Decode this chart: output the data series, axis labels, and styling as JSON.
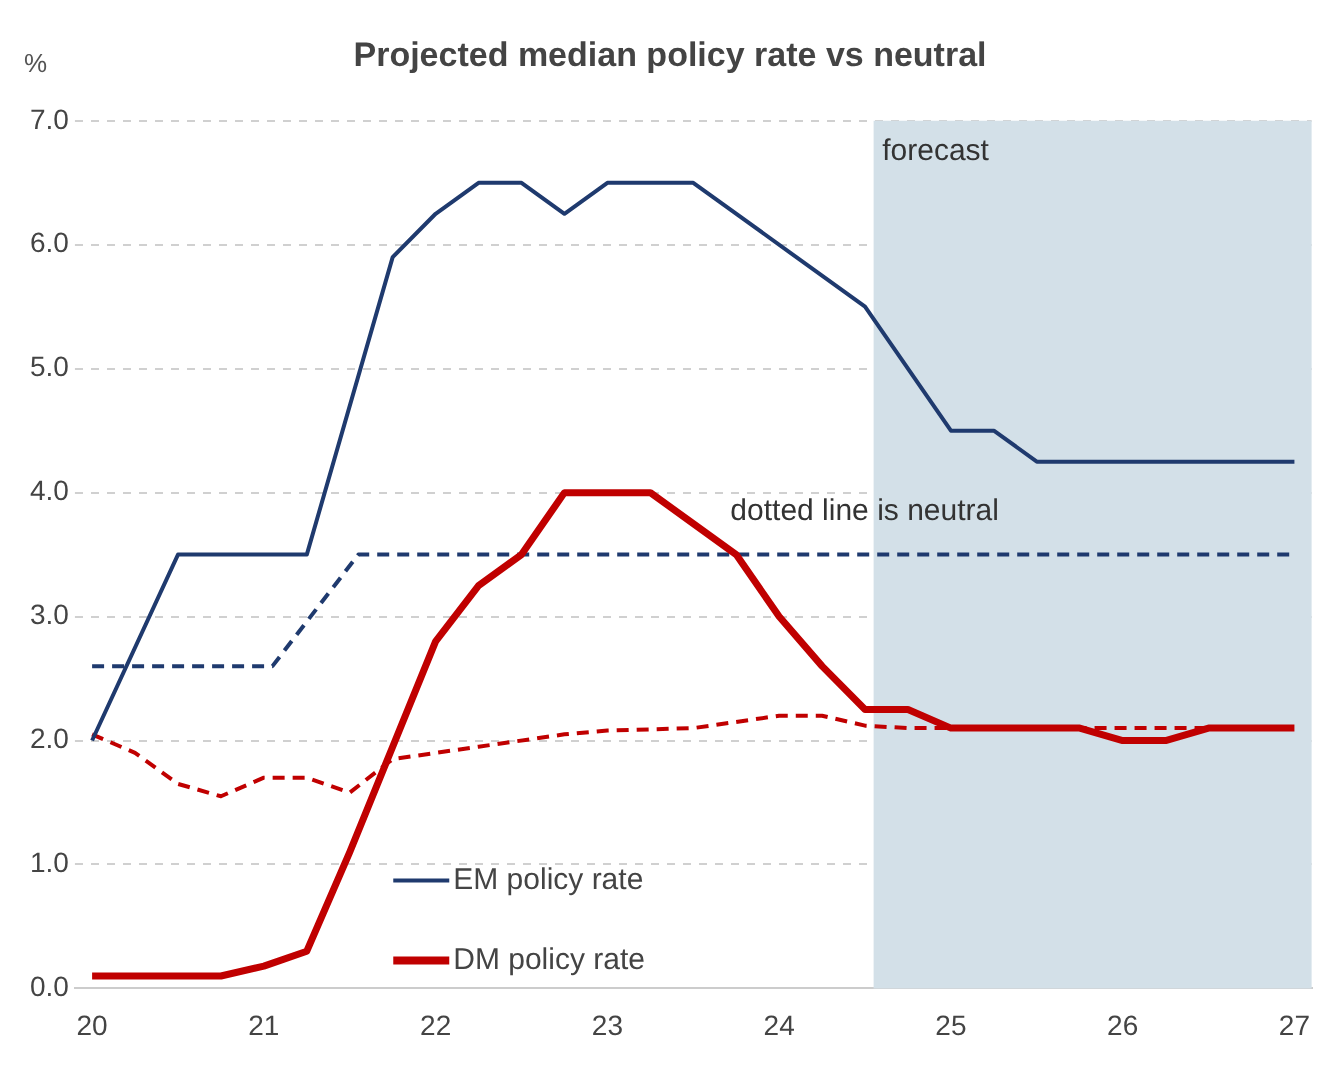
{
  "chart_data": {
    "type": "line",
    "title": "Projected median policy rate vs neutral",
    "ylabel": "%",
    "xlim": [
      19.9,
      27.1
    ],
    "xticks": [
      20,
      21,
      22,
      23,
      24,
      25,
      26,
      27
    ],
    "ylim": [
      0,
      7
    ],
    "yticks": [
      {
        "value": 0,
        "label": "0.0"
      },
      {
        "value": 1,
        "label": "1.0"
      },
      {
        "value": 2,
        "label": "2.0"
      },
      {
        "value": 3,
        "label": "3.0"
      },
      {
        "value": 4,
        "label": "4.0"
      },
      {
        "value": 5,
        "label": "5.0"
      },
      {
        "value": 6,
        "label": "6.0"
      },
      {
        "value": 7,
        "label": "7.0"
      }
    ],
    "grid": "y",
    "legend": "bottom",
    "marker": "none",
    "series": [
      {
        "name": "EM policy rate",
        "color": "#1f3a6e",
        "line_style": "solid",
        "x": [
          20,
          20.5,
          21.25,
          21.75,
          22,
          22.25,
          22.5,
          22.75,
          23,
          23.5,
          24.5,
          25,
          25.25,
          25.5,
          27
        ],
        "values": [
          2.0,
          3.5,
          3.5,
          5.9,
          6.25,
          6.5,
          6.5,
          6.25,
          6.5,
          6.5,
          5.5,
          4.5,
          4.5,
          4.25,
          4.25
        ]
      },
      {
        "name": "DM policy rate",
        "color": "#c00000",
        "line_style": "solid",
        "x": [
          20,
          20.75,
          21,
          21.25,
          21.5,
          21.75,
          22,
          22.25,
          22.5,
          22.75,
          23,
          23.25,
          23.5,
          23.75,
          24,
          24.25,
          24.5,
          24.75,
          25,
          25.75,
          26,
          26.25,
          26.5,
          27
        ],
        "values": [
          0.1,
          0.1,
          0.18,
          0.3,
          1.1,
          1.95,
          2.8,
          3.25,
          3.5,
          4.0,
          4.0,
          4.0,
          3.75,
          3.5,
          3.0,
          2.6,
          2.25,
          2.25,
          2.1,
          2.1,
          2.0,
          2.0,
          2.1,
          2.1
        ]
      },
      {
        "color": "#1f3a6e",
        "line_style": "dashed",
        "x": [
          20,
          21.05,
          21.55,
          27
        ],
        "values": [
          2.6,
          2.6,
          3.5,
          3.5
        ]
      },
      {
        "color": "#c00000",
        "line_style": "dashed",
        "x": [
          20,
          20.25,
          20.5,
          20.75,
          21,
          21.25,
          21.5,
          21.75,
          22,
          22.25,
          22.75,
          23,
          23.5,
          23.75,
          24,
          24.25,
          24.5,
          24.75,
          27
        ],
        "values": [
          2.05,
          1.9,
          1.65,
          1.55,
          1.7,
          1.7,
          1.58,
          1.85,
          1.9,
          1.95,
          2.05,
          2.08,
          2.1,
          2.15,
          2.2,
          2.2,
          2.12,
          2.1,
          2.1
        ]
      }
    ],
    "bands": [
      {
        "axis": "x",
        "from": 24.55,
        "to": 27.1,
        "color": "#d3e0e8"
      }
    ],
    "annotations": [
      {
        "text": "forecast",
        "x": 24.6,
        "y": 6.75
      },
      "dotted line is neutral"
    ]
  }
}
